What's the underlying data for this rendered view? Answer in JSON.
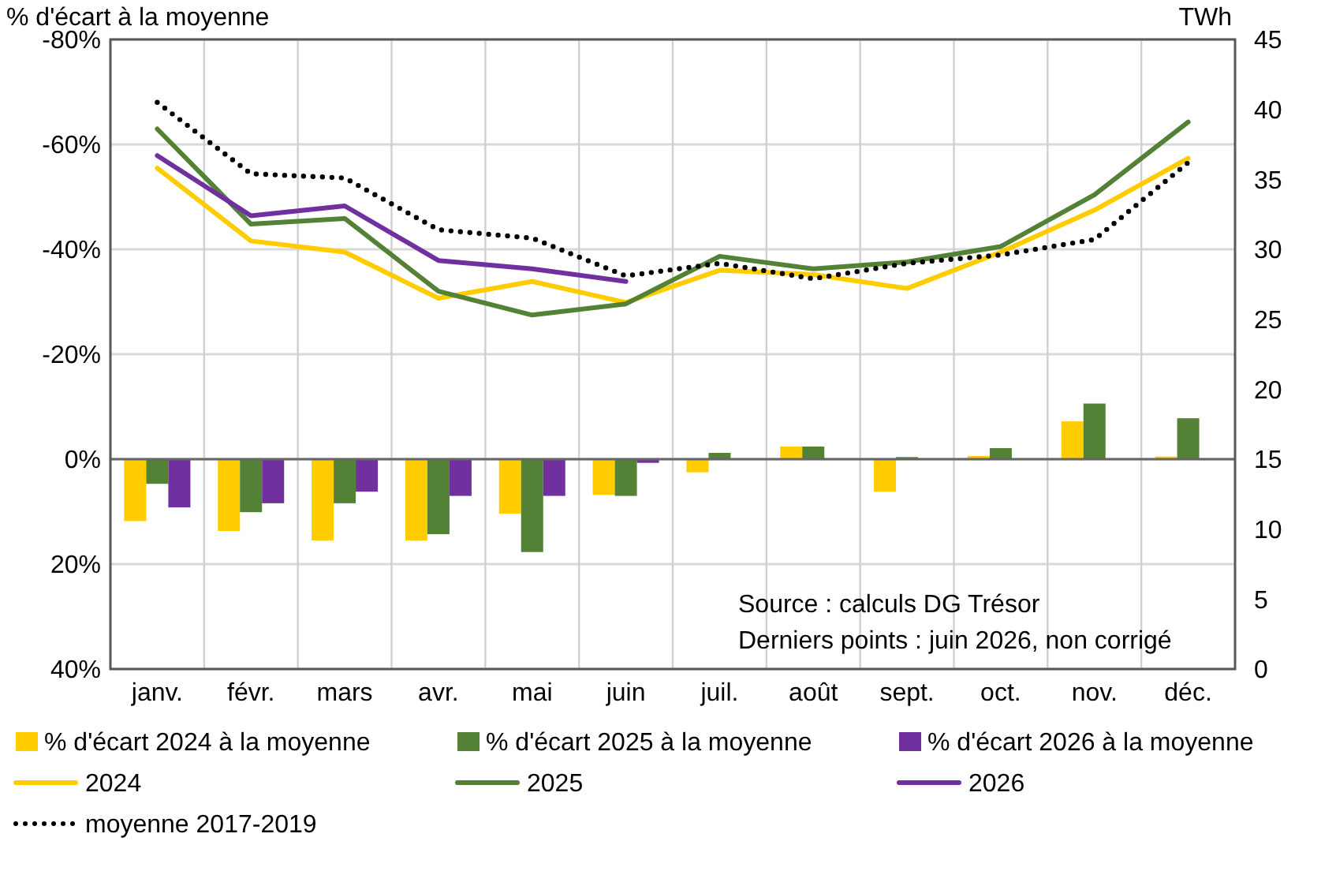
{
  "chart_data": {
    "type": "bar",
    "ylabel": "% d'écart à la moyenne",
    "y2label": "TWh",
    "categories": [
      "janv.",
      "févr.",
      "mars",
      "avr.",
      "mai",
      "juin",
      "juil.",
      "août",
      "sept.",
      "oct.",
      "nov.",
      "déc."
    ],
    "ylim": [
      40,
      -80
    ],
    "yticks": [
      {
        "value": -80,
        "label": "-80%"
      },
      {
        "value": -60,
        "label": "-60%"
      },
      {
        "value": -40,
        "label": "-40%"
      },
      {
        "value": -20,
        "label": "-20%"
      },
      {
        "value": 0,
        "label": "0%"
      },
      {
        "value": 20,
        "label": "20%"
      },
      {
        "value": 40,
        "label": "40%"
      }
    ],
    "y2lim": [
      0,
      45
    ],
    "y2ticks": [
      0,
      5,
      10,
      15,
      20,
      25,
      30,
      35,
      40,
      45
    ],
    "grid": true,
    "legend": "bottom",
    "series": [
      {
        "name": "% d'écart 2024 à la moyenne",
        "color": "#ffcc00",
        "values": [
          11.8,
          13.7,
          15.5,
          15.5,
          10.4,
          6.8,
          2.5,
          -2.4,
          6.2,
          -0.6,
          -7.2,
          -0.5
        ]
      },
      {
        "name": "% d'écart 2025 à la moyenne",
        "color": "#538135",
        "values": [
          4.7,
          10.1,
          8.4,
          14.3,
          17.7,
          7.0,
          -1.2,
          -2.4,
          -0.4,
          -2.1,
          -10.6,
          -7.8
        ]
      },
      {
        "name": "% d'écart 2026 à la moyenne",
        "color": "#7030a0",
        "values": [
          9.2,
          8.4,
          6.2,
          7.0,
          7.0,
          0.7,
          null,
          null,
          null,
          null,
          null,
          null
        ]
      },
      {
        "name": "2024",
        "type": "line",
        "axis": "y2",
        "color": "#ffcc00",
        "values": [
          35.8,
          30.6,
          29.8,
          26.5,
          27.7,
          26.2,
          28.5,
          28.2,
          27.2,
          29.8,
          32.8,
          36.5
        ]
      },
      {
        "name": "2025",
        "type": "line",
        "axis": "y2",
        "color": "#538135",
        "values": [
          38.6,
          31.8,
          32.2,
          27.0,
          25.3,
          26.1,
          29.5,
          28.6,
          29.1,
          30.2,
          33.9,
          39.1
        ]
      },
      {
        "name": "2026",
        "type": "line",
        "axis": "y2",
        "color": "#7030a0",
        "values": [
          36.7,
          32.4,
          33.1,
          29.2,
          28.6,
          27.7,
          null,
          null,
          null,
          null,
          null,
          null
        ]
      },
      {
        "name": "moyenne 2017-2019",
        "type": "line",
        "axis": "y2",
        "color": "#000000",
        "line_style": "dotted",
        "values": [
          40.5,
          35.4,
          35.1,
          31.4,
          30.8,
          28.1,
          29.0,
          27.9,
          29.0,
          29.6,
          30.7,
          36.2
        ]
      }
    ],
    "annotations": [
      "Source : calculs DG Trésor",
      "Derniers points : juin 2026, non corrigé"
    ]
  }
}
